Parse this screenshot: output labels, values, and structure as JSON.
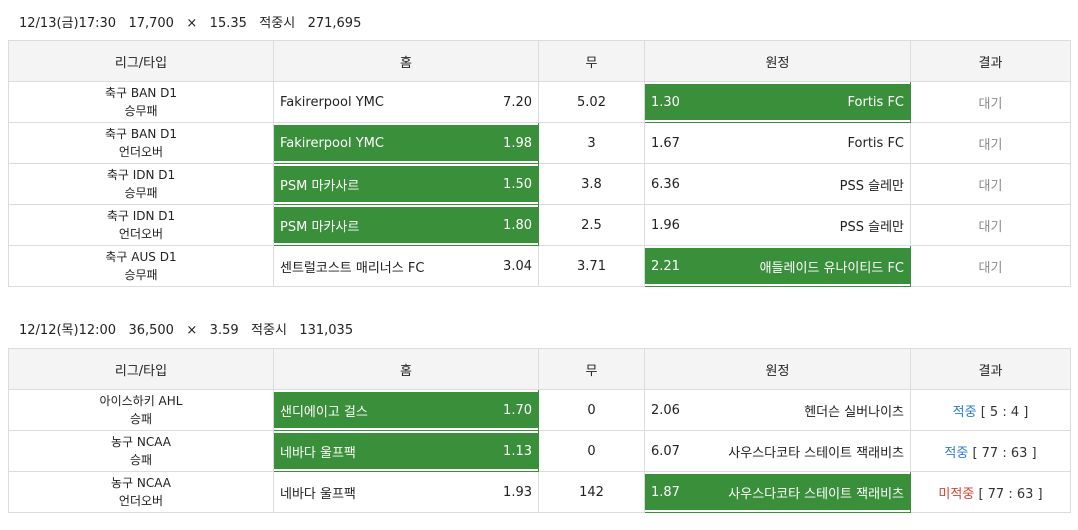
{
  "columns": {
    "league": "리그/타입",
    "home": "홈",
    "draw": "무",
    "away": "원정",
    "result": "결과"
  },
  "sections": [
    {
      "header": {
        "datetime": "12/13(금)17:30",
        "stake": "17,700",
        "times": "×",
        "multiplier": "15.35",
        "payout_label": "적중시",
        "payout": "271,695"
      },
      "rows": [
        {
          "league": "축구 BAN D1",
          "type": "승무패",
          "home": "Fakirerpool YMC",
          "home_odds": "7.20",
          "draw": "5.02",
          "away_odds": "1.30",
          "away": "Fortis FC",
          "pick": "away",
          "result": "대기"
        },
        {
          "league": "축구 BAN D1",
          "type": "언더오버",
          "home": "Fakirerpool YMC",
          "home_odds": "1.98",
          "draw": "3",
          "away_odds": "1.67",
          "away": "Fortis FC",
          "pick": "home",
          "result": "대기"
        },
        {
          "league": "축구 IDN D1",
          "type": "승무패",
          "home": "PSM 마카사르",
          "home_odds": "1.50",
          "draw": "3.8",
          "away_odds": "6.36",
          "away": "PSS 슬레만",
          "pick": "home",
          "result": "대기"
        },
        {
          "league": "축구 IDN D1",
          "type": "언더오버",
          "home": "PSM 마카사르",
          "home_odds": "1.80",
          "draw": "2.5",
          "away_odds": "1.96",
          "away": "PSS 슬레만",
          "pick": "home",
          "result": "대기"
        },
        {
          "league": "축구 AUS D1",
          "type": "승무패",
          "home": "센트럴코스트 매리너스 FC",
          "home_odds": "3.04",
          "draw": "3.71",
          "away_odds": "2.21",
          "away": "애들레이드 유나이티드 FC",
          "pick": "away",
          "result": "대기"
        }
      ]
    },
    {
      "header": {
        "datetime": "12/12(목)12:00",
        "stake": "36,500",
        "times": "×",
        "multiplier": "3.59",
        "payout_label": "적중시",
        "payout": "131,035"
      },
      "rows": [
        {
          "league": "아이스하키 AHL",
          "type": "승패",
          "home": "샌디에이고 걸스",
          "home_odds": "1.70",
          "draw": "0",
          "away_odds": "2.06",
          "away": "헨더슨 실버나이츠",
          "pick": "home",
          "result_status": "적중",
          "result_score": "[ 5 : 4 ]",
          "result_kind": "hit"
        },
        {
          "league": "농구 NCAA",
          "type": "승패",
          "home": "네바다 울프팩",
          "home_odds": "1.13",
          "draw": "0",
          "away_odds": "6.07",
          "away": "사우스다코타 스테이트 잭래비츠",
          "pick": "home",
          "result_status": "적중",
          "result_score": "[ 77 : 63 ]",
          "result_kind": "hit"
        },
        {
          "league": "농구 NCAA",
          "type": "언더오버",
          "home": "네바다 울프팩",
          "home_odds": "1.93",
          "draw": "142",
          "away_odds": "1.87",
          "away": "사우스다코타 스테이트 잭래비츠",
          "pick": "away",
          "result_status": "미적중",
          "result_score": "[ 77 : 63 ]",
          "result_kind": "miss"
        }
      ]
    }
  ]
}
